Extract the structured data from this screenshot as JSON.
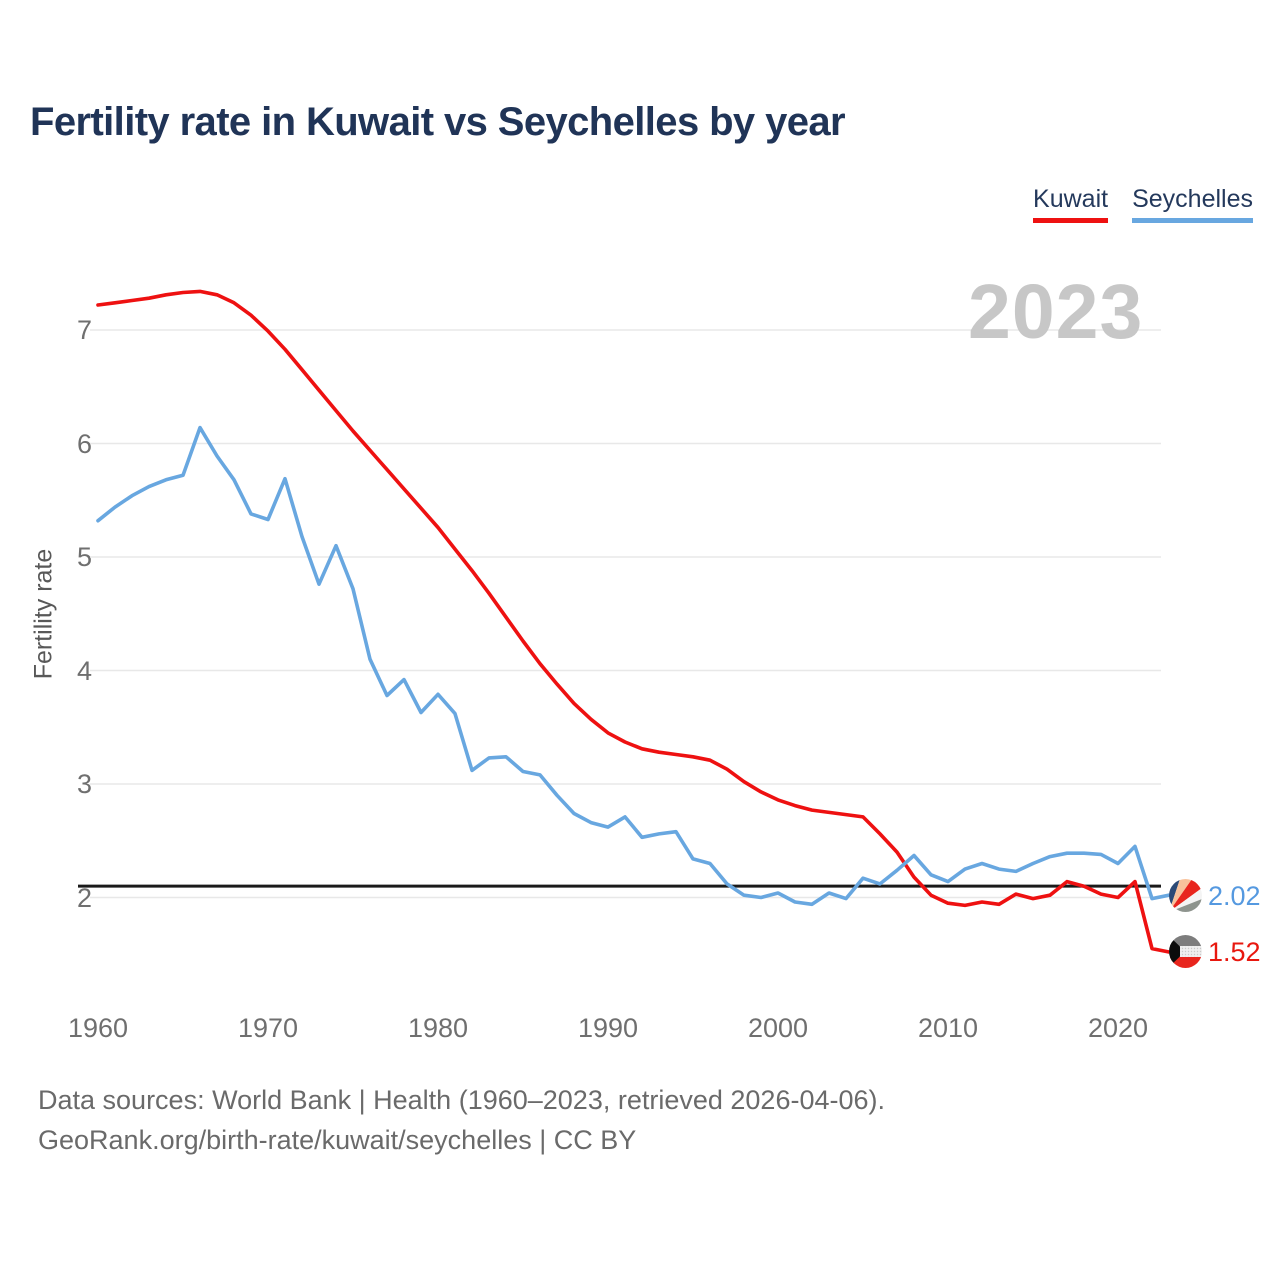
{
  "title": "Fertility rate in Kuwait vs Seychelles by year",
  "watermark_year": "2023",
  "legend": {
    "items": [
      {
        "label": "Kuwait",
        "color": "#ee1111"
      },
      {
        "label": "Seychelles",
        "color": "#68a7e0"
      }
    ]
  },
  "y_axis": {
    "label": "Fertility rate"
  },
  "reference_line": {
    "value": 2.1,
    "color": "#1a1a1a"
  },
  "end_labels": [
    {
      "series": "Seychelles",
      "value": "2.02",
      "icon": "seychelles-flag-icon",
      "text_color": "#5599e0"
    },
    {
      "series": "Kuwait",
      "value": "1.52",
      "icon": "kuwait-flag-icon",
      "text_color": "#e8180f"
    }
  ],
  "footer": {
    "line1": "Data sources: World Bank | Health (1960–2023, retrieved 2026-04-06).",
    "line2": "GeoRank.org/birth-rate/kuwait/seychelles | CC BY"
  },
  "chart_data": {
    "type": "line",
    "title": "Fertility rate in Kuwait vs Seychelles by year",
    "xlabel": "",
    "ylabel": "Fertility rate",
    "xlim": [
      1960,
      2023
    ],
    "ylim": [
      1.3,
      7.6
    ],
    "xticks": [
      1960,
      1970,
      1980,
      1990,
      2000,
      2010,
      2020
    ],
    "yticks": [
      2,
      3,
      4,
      5,
      6,
      7
    ],
    "grid": "horizontal",
    "legend_position": "top-right",
    "reference_line_y": 2.1,
    "x": [
      1960,
      1961,
      1962,
      1963,
      1964,
      1965,
      1966,
      1967,
      1968,
      1969,
      1970,
      1971,
      1972,
      1973,
      1974,
      1975,
      1976,
      1977,
      1978,
      1979,
      1980,
      1981,
      1982,
      1983,
      1984,
      1985,
      1986,
      1987,
      1988,
      1989,
      1990,
      1991,
      1992,
      1993,
      1994,
      1995,
      1996,
      1997,
      1998,
      1999,
      2000,
      2001,
      2002,
      2003,
      2004,
      2005,
      2006,
      2007,
      2008,
      2009,
      2010,
      2011,
      2012,
      2013,
      2014,
      2015,
      2016,
      2017,
      2018,
      2019,
      2020,
      2021,
      2022,
      2023
    ],
    "series": [
      {
        "name": "Kuwait",
        "color": "#ee1111",
        "final_value": 1.52,
        "values": [
          7.22,
          7.24,
          7.26,
          7.28,
          7.31,
          7.33,
          7.34,
          7.31,
          7.24,
          7.13,
          6.99,
          6.83,
          6.65,
          6.47,
          6.29,
          6.11,
          5.94,
          5.77,
          5.6,
          5.43,
          5.26,
          5.07,
          4.88,
          4.68,
          4.47,
          4.26,
          4.06,
          3.88,
          3.71,
          3.57,
          3.45,
          3.37,
          3.31,
          3.28,
          3.26,
          3.24,
          3.21,
          3.13,
          3.02,
          2.93,
          2.86,
          2.81,
          2.77,
          2.75,
          2.73,
          2.71,
          2.56,
          2.4,
          2.18,
          2.02,
          1.95,
          1.93,
          1.96,
          1.94,
          2.03,
          1.99,
          2.02,
          2.14,
          2.1,
          2.03,
          2.0,
          2.14,
          1.55,
          1.52
        ]
      },
      {
        "name": "Seychelles",
        "color": "#68a7e0",
        "final_value": 2.02,
        "values": [
          5.32,
          5.44,
          5.54,
          5.62,
          5.68,
          5.72,
          6.14,
          5.89,
          5.68,
          5.38,
          5.33,
          5.69,
          5.18,
          4.76,
          5.1,
          4.72,
          4.1,
          3.78,
          3.92,
          3.63,
          3.79,
          3.62,
          3.12,
          3.23,
          3.24,
          3.11,
          3.08,
          2.9,
          2.74,
          2.66,
          2.62,
          2.71,
          2.53,
          2.56,
          2.58,
          2.34,
          2.3,
          2.12,
          2.02,
          2.0,
          2.04,
          1.96,
          1.94,
          2.04,
          1.99,
          2.17,
          2.12,
          2.24,
          2.37,
          2.2,
          2.14,
          2.25,
          2.3,
          2.25,
          2.23,
          2.3,
          2.36,
          2.39,
          2.39,
          2.38,
          2.3,
          2.45,
          1.99,
          2.02
        ]
      }
    ]
  },
  "colors": {
    "grid": "#e8e8e8",
    "tick_label": "#6f6f6f",
    "title": "#203457",
    "watermark": "#c7c7c7"
  }
}
